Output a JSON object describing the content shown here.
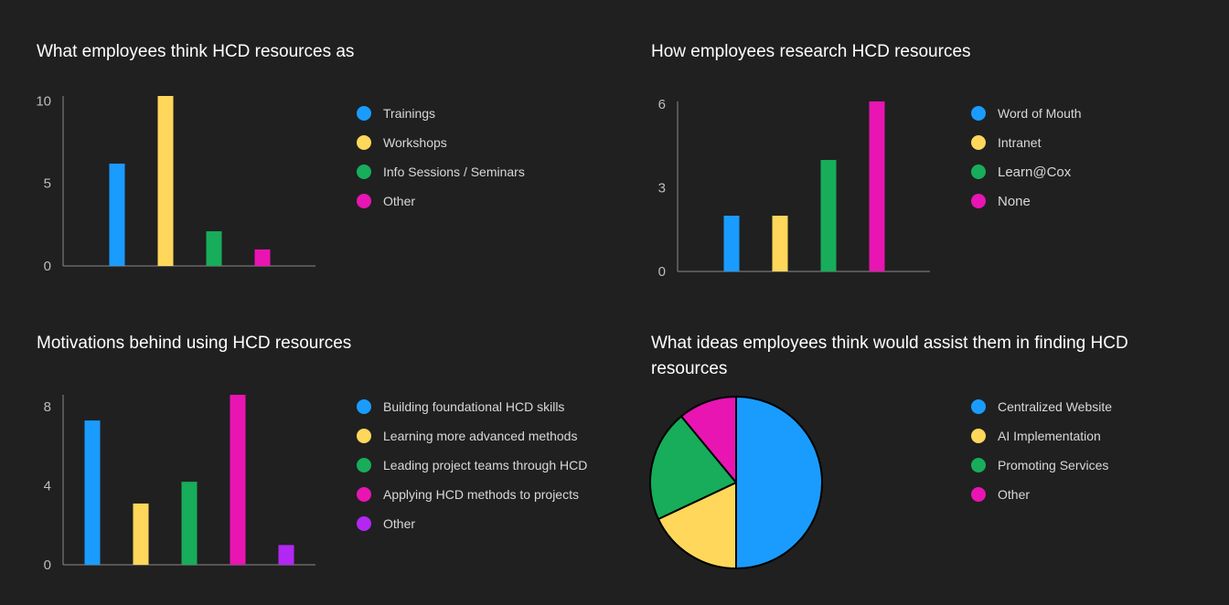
{
  "colors": {
    "blue": "#1a9cff",
    "yellow": "#ffd75a",
    "green": "#17ad5b",
    "magenta": "#e815b2",
    "purple": "#b327f2",
    "axis": "#8a8a8a",
    "background": "#202020"
  },
  "chart_data": [
    {
      "type": "bar",
      "title": "What employees think HCD resources as",
      "categories": [
        "Trainings",
        "Workshops",
        "Info Sessions / Seminars",
        "Other"
      ],
      "values": [
        6.2,
        10.3,
        2.1,
        1
      ],
      "colors": [
        "#1a9cff",
        "#ffd75a",
        "#17ad5b",
        "#e815b2"
      ],
      "yticks": [
        "0",
        "5",
        "10"
      ],
      "ylim": [
        0,
        10.3
      ],
      "legend": "right"
    },
    {
      "type": "bar",
      "title": "How employees research HCD resources",
      "categories": [
        "Word of Mouth",
        "Intranet",
        "Learn@Cox",
        "None"
      ],
      "values": [
        2,
        2,
        4,
        6.1
      ],
      "colors": [
        "#1a9cff",
        "#ffd75a",
        "#17ad5b",
        "#e815b2"
      ],
      "yticks": [
        "0",
        "3",
        "6"
      ],
      "ylim": [
        0,
        6.1
      ],
      "legend": "right"
    },
    {
      "type": "bar",
      "title": "Motivations behind using HCD resources",
      "categories": [
        "Building foundational HCD skills",
        "Learning more advanced methods",
        "Leading project teams through HCD",
        "Applying HCD methods to projects",
        "Other"
      ],
      "values": [
        7.3,
        3.1,
        4.2,
        8.6,
        1
      ],
      "colors": [
        "#1a9cff",
        "#ffd75a",
        "#17ad5b",
        "#e815b2",
        "#b327f2"
      ],
      "yticks": [
        "0",
        "4",
        "8"
      ],
      "ylim": [
        0,
        8.6
      ],
      "legend": "right"
    },
    {
      "type": "pie",
      "title": "What ideas employees think would assist them in finding HCD resources",
      "categories": [
        "Centralized Website",
        "AI Implementation",
        "Promoting Services",
        "Other"
      ],
      "values": [
        50,
        18,
        21,
        11
      ],
      "colors": [
        "#1a9cff",
        "#ffd75a",
        "#17ad5b",
        "#e815b2"
      ],
      "legend": "right"
    }
  ]
}
